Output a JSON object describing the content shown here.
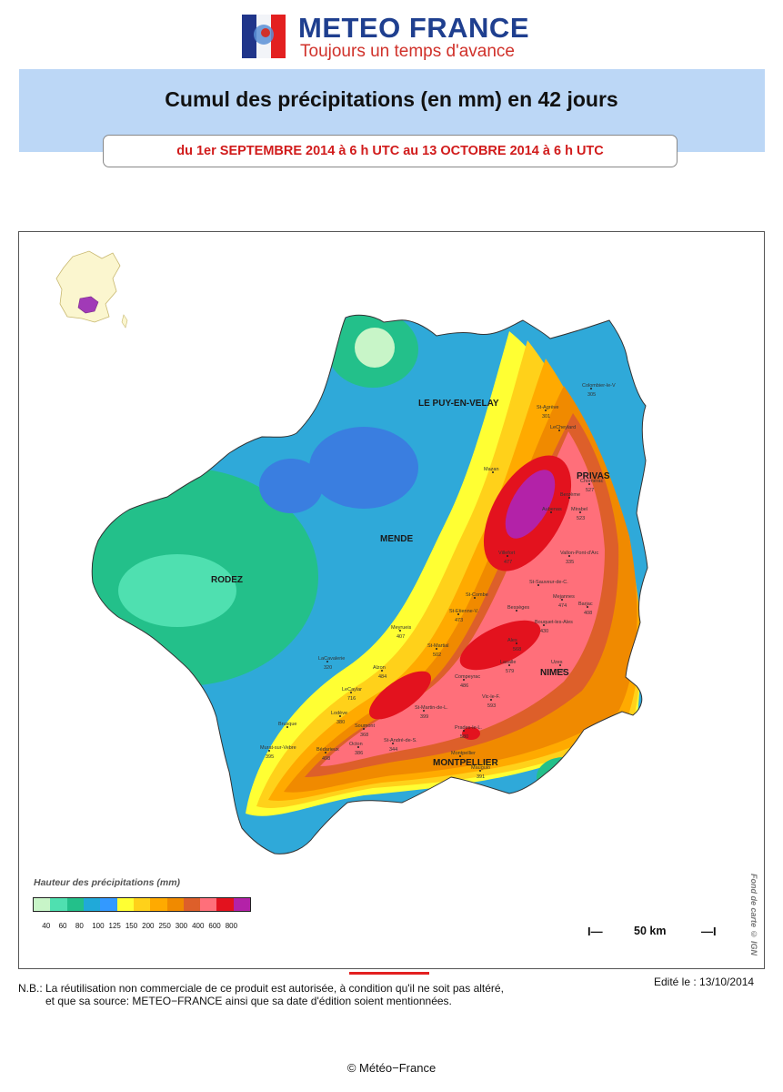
{
  "header": {
    "brand_name": "METEO FRANCE",
    "brand_tagline": "Toujours un temps d'avance",
    "title": "Cumul des précipitations (en mm) en 42 jours",
    "period": "du 1er SEPTEMBRE 2014 à 6 h UTC au 13 OCTOBRE 2014 à 6 h UTC"
  },
  "map": {
    "cities": [
      "LE PUY-EN-VELAY",
      "PRIVAS",
      "MENDE",
      "RODEZ",
      "NIMES",
      "MONTPELLIER"
    ],
    "stations": [
      {
        "name": "Colombier-le-V",
        "value": "305"
      },
      {
        "name": "St-Agrève",
        "value": "301"
      },
      {
        "name": "LeCheylard",
        "value": ""
      },
      {
        "name": "Mazan",
        "value": ""
      },
      {
        "name": "Chomérac",
        "value": "527"
      },
      {
        "name": "Berzème",
        "value": ""
      },
      {
        "name": "Mirabel",
        "value": "523"
      },
      {
        "name": "Aubenas",
        "value": ""
      },
      {
        "name": "Vallon-Pont-d'Arc",
        "value": "335"
      },
      {
        "name": "Villefort",
        "value": "477"
      },
      {
        "name": "St-Sauveur-de-C.",
        "value": ""
      },
      {
        "name": "St-Combe",
        "value": ""
      },
      {
        "name": "Mejannes",
        "value": "474"
      },
      {
        "name": "St-Etienne-V.",
        "value": "473"
      },
      {
        "name": "Bessèges",
        "value": ""
      },
      {
        "name": "Barjac",
        "value": "408"
      },
      {
        "name": "Ales",
        "value": "568"
      },
      {
        "name": "Bouquet-les-Ales",
        "value": "430"
      },
      {
        "name": "Meyrueis",
        "value": "407"
      },
      {
        "name": "Uzes",
        "value": "529"
      },
      {
        "name": "Lasalle",
        "value": "579"
      },
      {
        "name": "St-Martial",
        "value": "502"
      },
      {
        "name": "LaCavalerie",
        "value": "320"
      },
      {
        "name": "Alzon",
        "value": "484"
      },
      {
        "name": "Compeyrac",
        "value": "486"
      },
      {
        "name": "Vic-le-F.",
        "value": "593"
      },
      {
        "name": "St-Martin-de-L.",
        "value": "399"
      },
      {
        "name": "LeCaylar",
        "value": "716"
      },
      {
        "name": "Lodève",
        "value": "380"
      },
      {
        "name": "Brusque",
        "value": ""
      },
      {
        "name": "Soumont",
        "value": "368"
      },
      {
        "name": "Prades-le-L.",
        "value": "580"
      },
      {
        "name": "Murat-sur-Vebre",
        "value": "395"
      },
      {
        "name": "Bédarieux",
        "value": "498"
      },
      {
        "name": "Octon",
        "value": "386"
      },
      {
        "name": "St-André-de-S.",
        "value": "344"
      },
      {
        "name": "Montpellier",
        "value": ""
      },
      {
        "name": "Mauguio",
        "value": "391"
      }
    ]
  },
  "legend": {
    "title": "Hauteur des précipitations (mm)",
    "ticks": [
      "40",
      "60",
      "80",
      "100",
      "125",
      "150",
      "200",
      "250",
      "300",
      "400",
      "600",
      "800"
    ],
    "colors": [
      "#c8f5c8",
      "#4fe0b0",
      "#23c08a",
      "#20a9d9",
      "#3399ff",
      "#ffff33",
      "#ffd11a",
      "#ffaa00",
      "#f08a00",
      "#dd5f2a",
      "#ff6f7a",
      "#e3121e",
      "#b322a8"
    ]
  },
  "scale": {
    "left": "I—",
    "label": "50 km",
    "right": "—I"
  },
  "credit": "Fond de carte © IGN",
  "edited": "Edité le : 13/10/2014",
  "note": "N.B.: La réutilisation non commerciale de ce produit est autorisée, à condition qu'il ne soit pas altéré,\n         et que sa source: METEO−FRANCE ainsi que sa date d'édition soient mentionnées.",
  "copyright": "© Météo−France"
}
